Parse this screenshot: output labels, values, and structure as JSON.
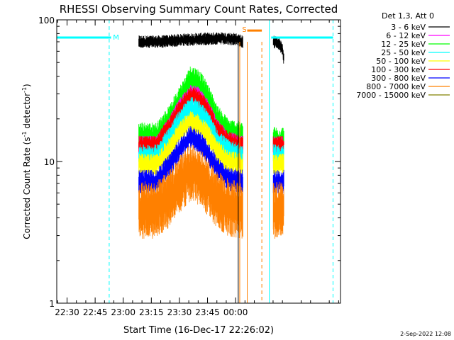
{
  "chart_data": {
    "type": "line",
    "title": "RHESSI Observing Summary Count Rates, Corrected",
    "xlabel": "Start Time (16-Dec-17 22:26:02)",
    "ylabel_main": "Corrected Count Rate (s",
    "ylabel_sup1": "-1",
    "ylabel_mid": " detector",
    "ylabel_sup2": "-1",
    "ylabel_end": ")",
    "y_scale": "log",
    "ylim": [
      1,
      100
    ],
    "y_ticks": [
      "1",
      "10",
      "100"
    ],
    "xlim_minutes": [
      -5.5,
      34.2
    ],
    "x_ticks": [
      {
        "label": "22:30",
        "minutes": 0
      },
      {
        "label": "22:45",
        "minutes": 15
      },
      {
        "label": "23:00",
        "minutes": 30
      },
      {
        "label": "23:15",
        "minutes": 45
      },
      {
        "label": "23:30",
        "minutes": 60
      },
      {
        "label": "23:45",
        "minutes": 75
      },
      {
        "label": "00:00",
        "minutes": 90
      }
    ],
    "legend_header": "Det 1,3, Att 0",
    "legend_placement": "right",
    "series": [
      {
        "name": "3 - 6 keV",
        "color": "#000000"
      },
      {
        "name": "6 - 12 keV",
        "color": "#ff00ff"
      },
      {
        "name": "12 - 25 keV",
        "color": "#00ff00"
      },
      {
        "name": "25 - 50 keV",
        "color": "#00ffff"
      },
      {
        "name": "50 - 100 keV",
        "color": "#ffff00"
      },
      {
        "name": "100 - 300 keV",
        "color": "#ff0000"
      },
      {
        "name": "300 - 800 keV",
        "color": "#0000ff"
      },
      {
        "name": "800 - 7000 keV",
        "color": "#ff8000"
      },
      {
        "name": "7000 - 15000 keV",
        "color": "#808000"
      }
    ],
    "segments": [
      {
        "start": 38.3,
        "end": 93.9
      },
      {
        "start": 110.1,
        "end": 115.8
      }
    ],
    "profiles": [
      {
        "name": "3 - 6 keV",
        "color": "#000000",
        "points": [
          [
            38.3,
            70
          ],
          [
            50,
            70
          ],
          [
            60,
            72
          ],
          [
            70,
            73
          ],
          [
            80,
            74
          ],
          [
            90,
            73
          ],
          [
            93.9,
            70
          ],
          [
            110.1,
            70
          ],
          [
            113,
            68
          ],
          [
            115,
            62
          ],
          [
            115.8,
            52
          ]
        ]
      },
      {
        "name": "12 - 25 keV",
        "color": "#00ff00",
        "points": [
          [
            38.3,
            15
          ],
          [
            48,
            15
          ],
          [
            55,
            20
          ],
          [
            62,
            30
          ],
          [
            66,
            38
          ],
          [
            70,
            36
          ],
          [
            74,
            30
          ],
          [
            80,
            20
          ],
          [
            86,
            16
          ],
          [
            93.9,
            15
          ],
          [
            110.1,
            14
          ],
          [
            115.8,
            14
          ]
        ]
      },
      {
        "name": "6 - 12 keV",
        "color": "#ff00ff",
        "points": [
          [
            38.3,
            13
          ],
          [
            48,
            13
          ],
          [
            55,
            18
          ],
          [
            62,
            26
          ],
          [
            66,
            30
          ],
          [
            70,
            29
          ],
          [
            74,
            25
          ],
          [
            80,
            17
          ],
          [
            86,
            14
          ],
          [
            93.9,
            13
          ],
          [
            110.1,
            13
          ],
          [
            115.8,
            13
          ]
        ]
      },
      {
        "name": "100 - 300 keV",
        "color": "#ff0000",
        "points": [
          [
            38.3,
            13
          ],
          [
            48,
            13
          ],
          [
            55,
            18
          ],
          [
            62,
            25
          ],
          [
            66,
            29
          ],
          [
            70,
            28
          ],
          [
            74,
            24
          ],
          [
            80,
            17
          ],
          [
            86,
            14
          ],
          [
            93.9,
            13
          ],
          [
            110.1,
            13
          ],
          [
            115.8,
            13
          ]
        ]
      },
      {
        "name": "25 - 50 keV",
        "color": "#00ffff",
        "points": [
          [
            38.3,
            11
          ],
          [
            48,
            11
          ],
          [
            55,
            15
          ],
          [
            62,
            21
          ],
          [
            66,
            24
          ],
          [
            70,
            23
          ],
          [
            74,
            20
          ],
          [
            80,
            14
          ],
          [
            86,
            12
          ],
          [
            93.9,
            11
          ],
          [
            110.1,
            11
          ],
          [
            115.8,
            11
          ]
        ]
      },
      {
        "name": "50 - 100 keV",
        "color": "#ffff00",
        "points": [
          [
            38.3,
            9.5
          ],
          [
            48,
            9.5
          ],
          [
            55,
            12.5
          ],
          [
            62,
            17
          ],
          [
            66,
            19
          ],
          [
            70,
            18
          ],
          [
            74,
            16
          ],
          [
            80,
            12
          ],
          [
            86,
            10
          ],
          [
            93.9,
            9.5
          ],
          [
            110.1,
            9.5
          ],
          [
            115.8,
            9.5
          ]
        ]
      },
      {
        "name": "300 - 800 keV",
        "color": "#0000ff",
        "points": [
          [
            38.3,
            7.2
          ],
          [
            48,
            7.2
          ],
          [
            55,
            9.5
          ],
          [
            62,
            13
          ],
          [
            66,
            15
          ],
          [
            70,
            14
          ],
          [
            74,
            12
          ],
          [
            80,
            9
          ],
          [
            86,
            7.5
          ],
          [
            93.9,
            7.2
          ],
          [
            110.1,
            7.2
          ],
          [
            115.8,
            7.2
          ]
        ]
      },
      {
        "name": "800 - 7000 keV",
        "color": "#ff8000",
        "points": [
          [
            38.3,
            4.6
          ],
          [
            48,
            4.6
          ],
          [
            55,
            5.6
          ],
          [
            62,
            7.5
          ],
          [
            66,
            8.5
          ],
          [
            70,
            8
          ],
          [
            74,
            7
          ],
          [
            80,
            5.5
          ],
          [
            86,
            4.8
          ],
          [
            93.9,
            4.6
          ],
          [
            110.1,
            4.6
          ],
          [
            115.8,
            4.6
          ]
        ]
      }
    ],
    "annotations": {
      "top_bar_color": "#00ffff",
      "top_bar_level": 75,
      "flag_bar_color": "#ff8000",
      "m_label": "M",
      "s_label": "S",
      "vlines_solid_cyan_minutes": [
        -5.5,
        108
      ],
      "vlines_dashed_cyan_minutes": [
        22.5,
        142
      ],
      "vlines_solid_orange_minutes": [
        92.2,
        96.2
      ],
      "vlines_dashed_orange_minutes": [
        104
      ],
      "vline_solid_black_minutes": [
        91.4
      ]
    },
    "footer_date": "2-Sep-2022 12:08"
  }
}
